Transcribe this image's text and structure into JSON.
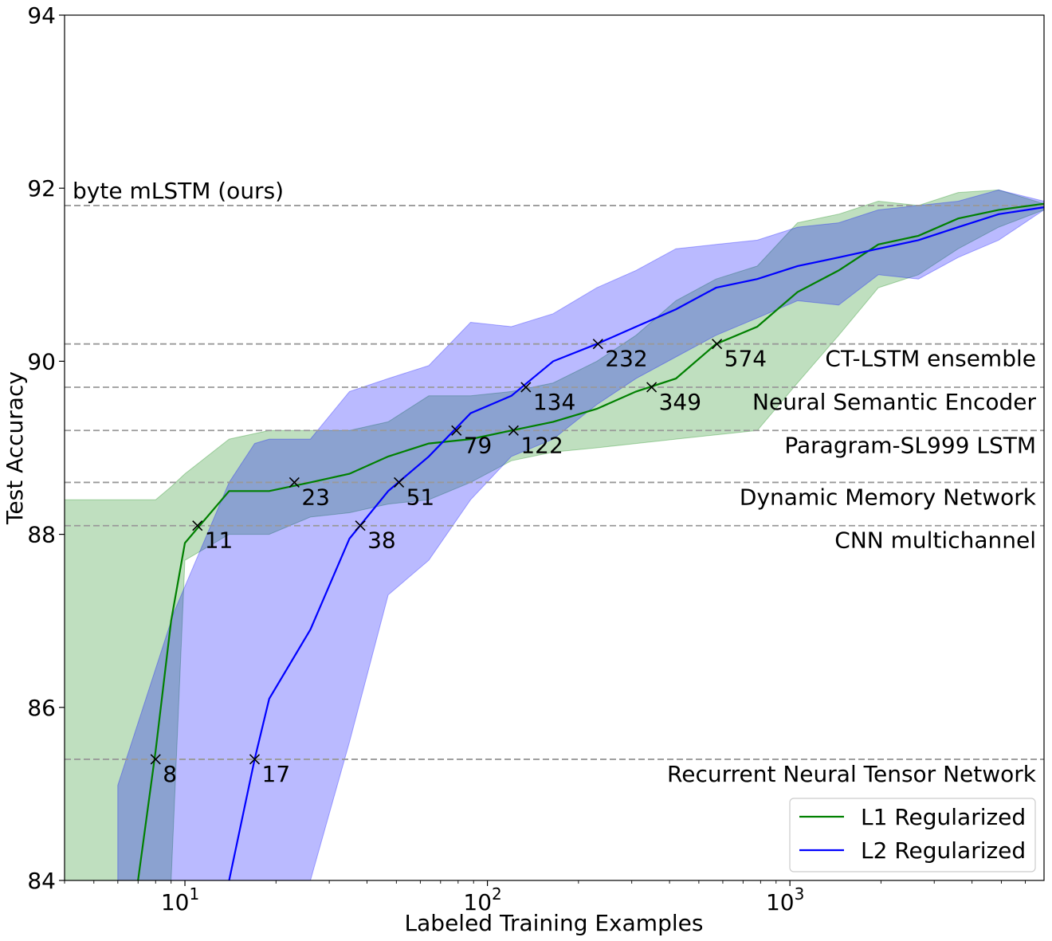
{
  "chart_data": {
    "type": "line",
    "xlabel": "Labeled Training Examples",
    "ylabel": "Test Accuracy",
    "xscale": "log",
    "xlim": [
      4,
      6920
    ],
    "ylim": [
      84,
      94
    ],
    "grid": false,
    "legend_position": "lower-right",
    "yticks": [
      "84",
      "86",
      "88",
      "90",
      "92",
      "94"
    ],
    "xticks": [
      {
        "value": 10,
        "base": "10",
        "exp": "1"
      },
      {
        "value": 100,
        "base": "10",
        "exp": "2"
      },
      {
        "value": 1000,
        "base": "10",
        "exp": "3"
      }
    ],
    "reference_lines": [
      {
        "label": "byte mLSTM (ours)",
        "y": 91.8,
        "align": "left"
      },
      {
        "label": "CT-LSTM ensemble",
        "y": 90.2,
        "align": "right"
      },
      {
        "label": "Neural Semantic Encoder",
        "y": 89.7,
        "align": "right"
      },
      {
        "label": "Paragram-SL999 LSTM",
        "y": 89.2,
        "align": "right"
      },
      {
        "label": "Dynamic Memory Network",
        "y": 88.6,
        "align": "right"
      },
      {
        "label": "CNN multichannel",
        "y": 88.1,
        "align": "right"
      },
      {
        "label": "Recurrent Neural Tensor Network",
        "y": 85.4,
        "align": "right"
      }
    ],
    "series": [
      {
        "name": "L1 Regularized",
        "color": "#008000",
        "band_color": "#008000",
        "x": [
          7,
          8,
          9,
          10,
          14,
          19,
          26,
          35,
          47,
          64,
          88,
          120,
          165,
          230,
          310,
          420,
          570,
          780,
          1060,
          1450,
          1960,
          2660,
          3600,
          4900,
          6920
        ],
        "y": [
          84.0,
          85.5,
          87.0,
          87.9,
          88.5,
          88.5,
          88.6,
          88.7,
          88.9,
          89.05,
          89.1,
          89.2,
          89.3,
          89.45,
          89.65,
          89.8,
          90.2,
          90.4,
          90.8,
          91.05,
          91.35,
          91.45,
          91.65,
          91.75,
          91.82
        ],
        "lower": [
          84.0,
          84.0,
          84.0,
          87.7,
          88.0,
          88.0,
          88.2,
          88.25,
          88.35,
          88.4,
          88.6,
          88.85,
          88.95,
          89.0,
          89.05,
          89.1,
          89.15,
          89.2,
          89.75,
          90.3,
          90.85,
          91.0,
          91.3,
          91.55,
          91.75
        ],
        "upper": [
          88.4,
          88.4,
          88.55,
          88.7,
          89.1,
          89.2,
          89.2,
          89.2,
          89.3,
          89.6,
          89.6,
          89.65,
          89.75,
          90.0,
          90.3,
          90.7,
          90.95,
          91.1,
          91.6,
          91.7,
          91.85,
          91.8,
          91.95,
          91.98,
          91.82
        ],
        "markers": [
          {
            "x": 8,
            "y": 85.4,
            "label": "8"
          },
          {
            "x": 11,
            "y": 88.1,
            "label": "11"
          },
          {
            "x": 23,
            "y": 88.6,
            "label": "23"
          },
          {
            "x": 79,
            "y": 89.2,
            "label": "79"
          },
          {
            "x": 122,
            "y": 89.2,
            "label": "122"
          },
          {
            "x": 349,
            "y": 89.7,
            "label": "349"
          },
          {
            "x": 574,
            "y": 90.2,
            "label": "574"
          }
        ]
      },
      {
        "name": "L2 Regularized",
        "color": "#0000ff",
        "band_color": "#0000ff",
        "x": [
          14,
          17,
          19,
          26,
          35,
          47,
          64,
          88,
          120,
          165,
          230,
          310,
          420,
          570,
          780,
          1060,
          1450,
          1960,
          2660,
          3600,
          4900,
          6920
        ],
        "y": [
          84.0,
          85.4,
          86.1,
          86.9,
          87.95,
          88.5,
          88.9,
          89.4,
          89.6,
          90.0,
          90.2,
          90.4,
          90.6,
          90.85,
          90.95,
          91.1,
          91.2,
          91.3,
          91.4,
          91.55,
          91.7,
          91.78
        ],
        "lower": [
          84.0,
          84.0,
          84.0,
          84.0,
          85.6,
          87.3,
          87.7,
          88.4,
          88.9,
          89.1,
          89.5,
          89.8,
          90.05,
          90.3,
          90.5,
          90.7,
          90.65,
          91.0,
          90.95,
          91.2,
          91.4,
          91.75
        ],
        "upper": [
          88.6,
          89.05,
          89.1,
          89.1,
          89.65,
          89.8,
          89.95,
          90.45,
          90.4,
          90.55,
          90.85,
          91.05,
          91.3,
          91.35,
          91.4,
          91.55,
          91.6,
          91.75,
          91.8,
          91.85,
          91.98,
          91.85
        ],
        "band_x_extra": {
          "x": [
            6,
            9.2
          ],
          "lower": [
            84.0,
            84.0
          ],
          "upper": [
            85.1,
            87.1
          ]
        },
        "markers": [
          {
            "x": 17,
            "y": 85.4,
            "label": "17"
          },
          {
            "x": 38,
            "y": 88.1,
            "label": "38"
          },
          {
            "x": 51,
            "y": 88.6,
            "label": "51"
          },
          {
            "x": 134,
            "y": 89.7,
            "label": "134"
          },
          {
            "x": 232,
            "y": 90.2,
            "label": "232"
          }
        ]
      }
    ]
  }
}
